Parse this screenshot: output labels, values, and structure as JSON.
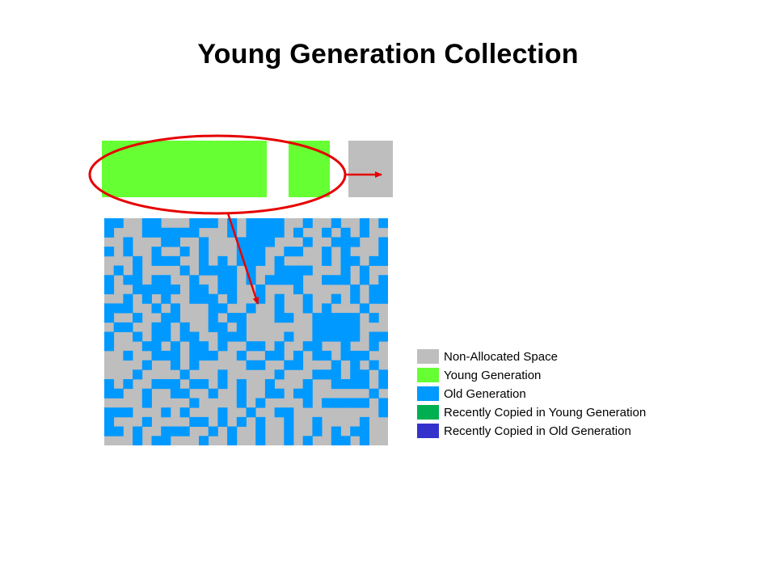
{
  "title": "Young Generation Collection",
  "colors": {
    "non_allocated": "#bebebe",
    "young": "#66ff33",
    "old": "#0099ff",
    "recent_young": "#00b050",
    "recent_old": "#3333cc",
    "highlight": "#e60000"
  },
  "heap": {
    "young_blocks": [
      {
        "name": "eden-block",
        "state": "young"
      },
      {
        "name": "survivor-from-block",
        "state": "young"
      },
      {
        "name": "survivor-to-block",
        "state": "non_allocated"
      }
    ],
    "old_generation_grid": {
      "rows": 24,
      "cols": 30,
      "legend": {
        ".": "non_allocated",
        "#": "old"
      },
      "cells": [
        "##..##...###.#.####..#..#..#.#",
        "#...######...#.####.#..#.#.#..",
        "..#...##..#...####...#..###..#",
        "#.#..#..#.#...###..##..#.#...#",
        "...#.###..#.#.###.#....#.##.##",
        ".#.#....#.####.#..####...#.#..",
        "#.##.##..#..##.#.####..###.#.#",
        "#..#####.##.##..#...#.....#.##",
        "..#.#.#..###.#..#.#..#..#.#.##",
        "###..#.#...##..#..#..#.#...#..",
        "#..#..##...#.##...##..#####.#.",
        ".##..##.#..##.#.......#####...",
        "#..#.##.##..###....#..#####.##",
        "#...##.#.##.#..##.#..##..#..#.",
        "..#..###.###..#..##.#.##.###..",
        "....#..#.#.....##..##...#.#.#.",
        "...#....#...#.....#...###.##.#",
        "#.#..###.##.#.#..#...#..####.#",
        "##..#..##..#..#..##.##......#.",
        "....#....#....#.#....#.#####.#",
        "###...#.#...#..#..##.........#",
        "#...#....##.#.#.#..#..#....#..",
        "##.#..###..#.#..#..#..#.#.##..",
        "...#.##...#..#..#..#.#..##.#.."
      ]
    }
  },
  "legend": [
    {
      "label": "Non-Allocated Space",
      "color": "#bebebe"
    },
    {
      "label": "Young Generation",
      "color": "#66ff33"
    },
    {
      "label": "Old Generation",
      "color": "#0099ff"
    },
    {
      "label": "Recently Copied in Young Generation",
      "color": "#00b050"
    },
    {
      "label": "Recently Copied in Old Generation",
      "color": "#3333cc"
    }
  ]
}
